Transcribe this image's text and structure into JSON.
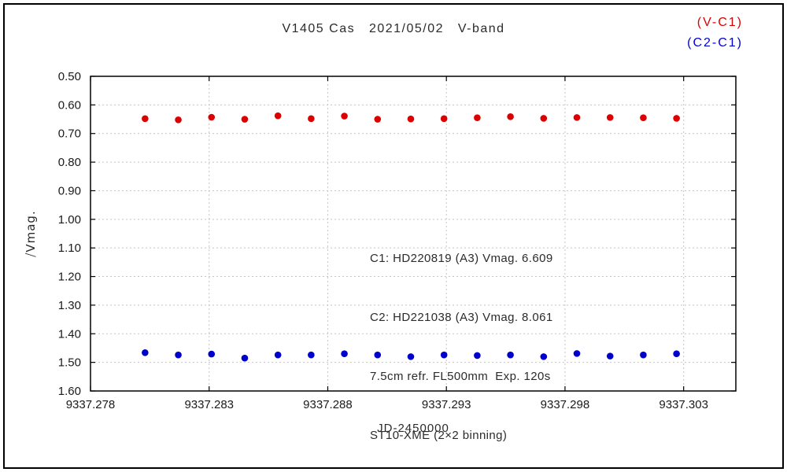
{
  "chart": {
    "title": "V1405 Cas   2021/05/02   V-band",
    "legend": [
      {
        "label": "(V-C1)",
        "color": "#dd0000"
      },
      {
        "label": "(C2-C1)",
        "color": "#0000cc"
      }
    ],
    "ylabel": "⧸Vmag.",
    "xlabel": "JD-2450000",
    "annotation": [
      "C1: HD220819 (A3) Vmag. 6.609",
      "C2: HD221038 (A3) Vmag. 8.061",
      "7.5cm refr. FL500mm  Exp. 120s",
      "ST10-XME (2×2 binning)"
    ]
  },
  "chart_data": {
    "type": "scatter",
    "title": "V1405 Cas 2021/05/02 V-band",
    "xlabel": "JD-2450000",
    "ylabel": "ΔVmag.",
    "xlim": [
      9337.278,
      9337.3052
    ],
    "ylim": [
      0.5,
      1.6
    ],
    "y_inverted": true,
    "grid": true,
    "legend_position": "top-right",
    "xticks": [
      9337.278,
      9337.283,
      9337.288,
      9337.293,
      9337.298,
      9337.303
    ],
    "xtick_labels": [
      "9337.278",
      "9337.283",
      "9337.288",
      "9337.293",
      "9337.298",
      "9337.303"
    ],
    "yticks": [
      0.5,
      0.6,
      0.7,
      0.8,
      0.9,
      1.0,
      1.1,
      1.2,
      1.3,
      1.4,
      1.5,
      1.6
    ],
    "ytick_labels": [
      "0.50",
      "0.60",
      "0.70",
      "0.80",
      "0.90",
      "1.00",
      "1.10",
      "1.20",
      "1.30",
      "1.40",
      "1.50",
      "1.60"
    ],
    "x": [
      9337.2803,
      9337.2817,
      9337.2831,
      9337.2845,
      9337.2859,
      9337.2873,
      9337.2887,
      9337.2901,
      9337.2915,
      9337.2929,
      9337.2943,
      9337.2957,
      9337.2971,
      9337.2985,
      9337.2999,
      9337.3013,
      9337.3027
    ],
    "series": [
      {
        "name": "V-C1",
        "color": "#dd0000",
        "values": [
          0.648,
          0.652,
          0.643,
          0.65,
          0.638,
          0.648,
          0.639,
          0.65,
          0.649,
          0.648,
          0.645,
          0.641,
          0.647,
          0.644,
          0.644,
          0.645,
          0.647
        ]
      },
      {
        "name": "C2-C1",
        "color": "#0000cc",
        "values": [
          1.466,
          1.474,
          1.471,
          1.485,
          1.474,
          1.474,
          1.47,
          1.474,
          1.48,
          1.474,
          1.476,
          1.474,
          1.48,
          1.469,
          1.478,
          1.474,
          1.47
        ]
      }
    ],
    "style": {
      "grid_color": "#c4c4c4",
      "frame_color": "#000000",
      "marker_radius": 4.3
    }
  }
}
